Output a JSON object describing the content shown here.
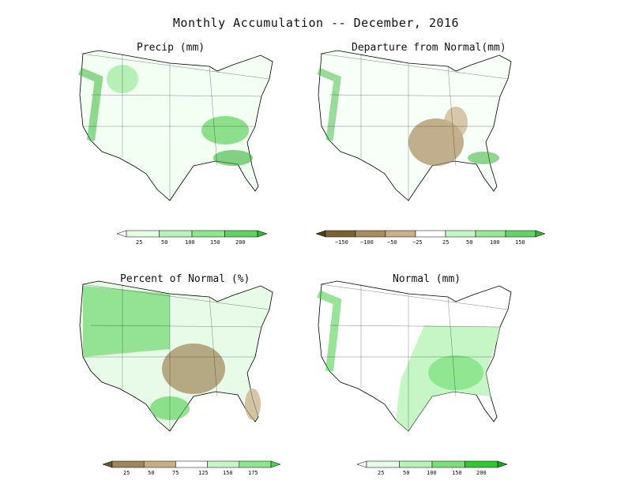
{
  "title": "Monthly Accumulation -- December, 2016",
  "panels": [
    {
      "title": "Precip (mm)",
      "colorbar": {
        "labels": [
          "25",
          "50",
          "100",
          "150",
          "200"
        ],
        "colors": [
          "#ffffff",
          "#e6fbe6",
          "#b8f2b8",
          "#8ce68c",
          "#5fd35f",
          "#35b335"
        ]
      }
    },
    {
      "title": "Departure from Normal(mm)",
      "colorbar": {
        "labels": [
          "−150",
          "−100",
          "−50",
          "−25",
          "25",
          "50",
          "100",
          "150"
        ],
        "colors": [
          "#4d3a1f",
          "#7a6236",
          "#a88b5e",
          "#c9b08a",
          "#ffffff",
          "#c6f5c6",
          "#96e896",
          "#63d363",
          "#35b335"
        ]
      }
    },
    {
      "title": "Percent of Normal (%)",
      "colorbar": {
        "labels": [
          "25",
          "50",
          "75",
          "125",
          "150",
          "175"
        ],
        "colors": [
          "#6b5530",
          "#a0865a",
          "#c8ad85",
          "#ffffff",
          "#c6f5c6",
          "#8ce68c",
          "#4fcf4f"
        ]
      }
    },
    {
      "title": "Normal (mm)",
      "colorbar": {
        "labels": [
          "25",
          "50",
          "100",
          "150",
          "200"
        ],
        "colors": [
          "#ffffff",
          "#e6fbe6",
          "#b8f2b8",
          "#7ae07a",
          "#2fc82f",
          "#1aa51a"
        ]
      }
    }
  ]
}
